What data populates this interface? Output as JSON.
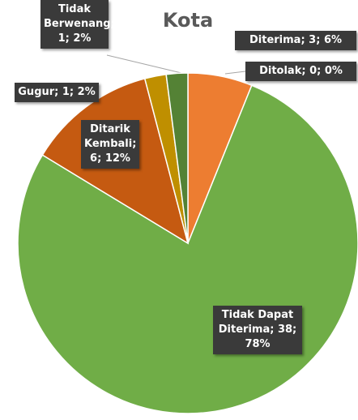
{
  "chart_data": {
    "type": "pie",
    "title": "Kota",
    "values": [
      3,
      0,
      38,
      6,
      1,
      1
    ],
    "value_labels": [
      "Diterima; 3; 6%",
      "Ditolak; 0; 0%",
      "Tidak Dapat Diterima; 38; 78%",
      "Ditarik Kembali; 6; 12%",
      "Gugur; 1; 2%",
      "Tidak Berwenang; 1; 2%"
    ],
    "colors": [
      "#ed7d31",
      "#a5a5a5",
      "#70ad47",
      "#c55a11",
      "#bf8f00",
      "#548235"
    ]
  }
}
